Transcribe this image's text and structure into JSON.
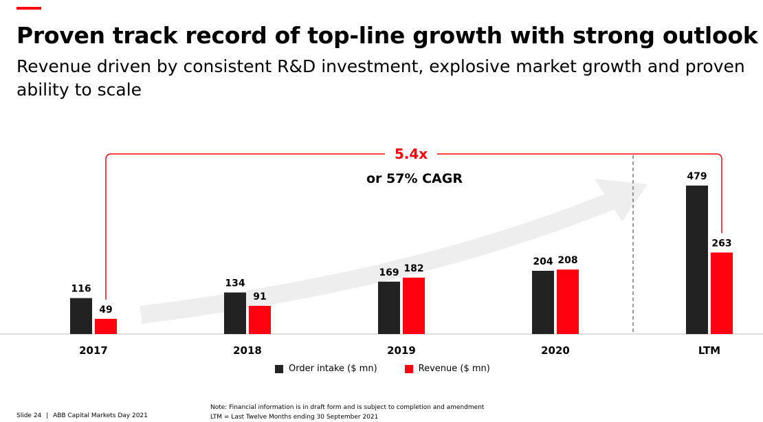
{
  "header": {
    "title": "Proven track record of top-line growth with strong outlook",
    "subtitle": "Revenue driven by consistent R&D investment, explosive market growth and proven ability to scale"
  },
  "colors": {
    "accent": "#ff000f",
    "order_intake": "#222222",
    "revenue": "#ff000f",
    "arrow": "#eeeeee"
  },
  "chart_data": {
    "type": "bar",
    "categories": [
      "2017",
      "2018",
      "2019",
      "2020",
      "LTM"
    ],
    "series": [
      {
        "name": "Order intake ($ mn)",
        "values": [
          116,
          134,
          169,
          204,
          479
        ]
      },
      {
        "name": "Revenue ($ mn)",
        "values": [
          49,
          91,
          182,
          208,
          263
        ]
      }
    ],
    "ylim": [
      0,
      479
    ],
    "legend_position": "bottom",
    "grid": false,
    "annotations": {
      "growth_multiple": "5.4x",
      "cagr": "or 57% CAGR"
    }
  },
  "footer": {
    "slide": "Slide 24",
    "separator": "|",
    "event": "ABB Capital Markets Day 2021",
    "note_line1": "Note: Financial information is in draft form and is subject to completion and amendment",
    "note_line2": "LTM = Last Twelve Months ending 30 September 2021"
  }
}
